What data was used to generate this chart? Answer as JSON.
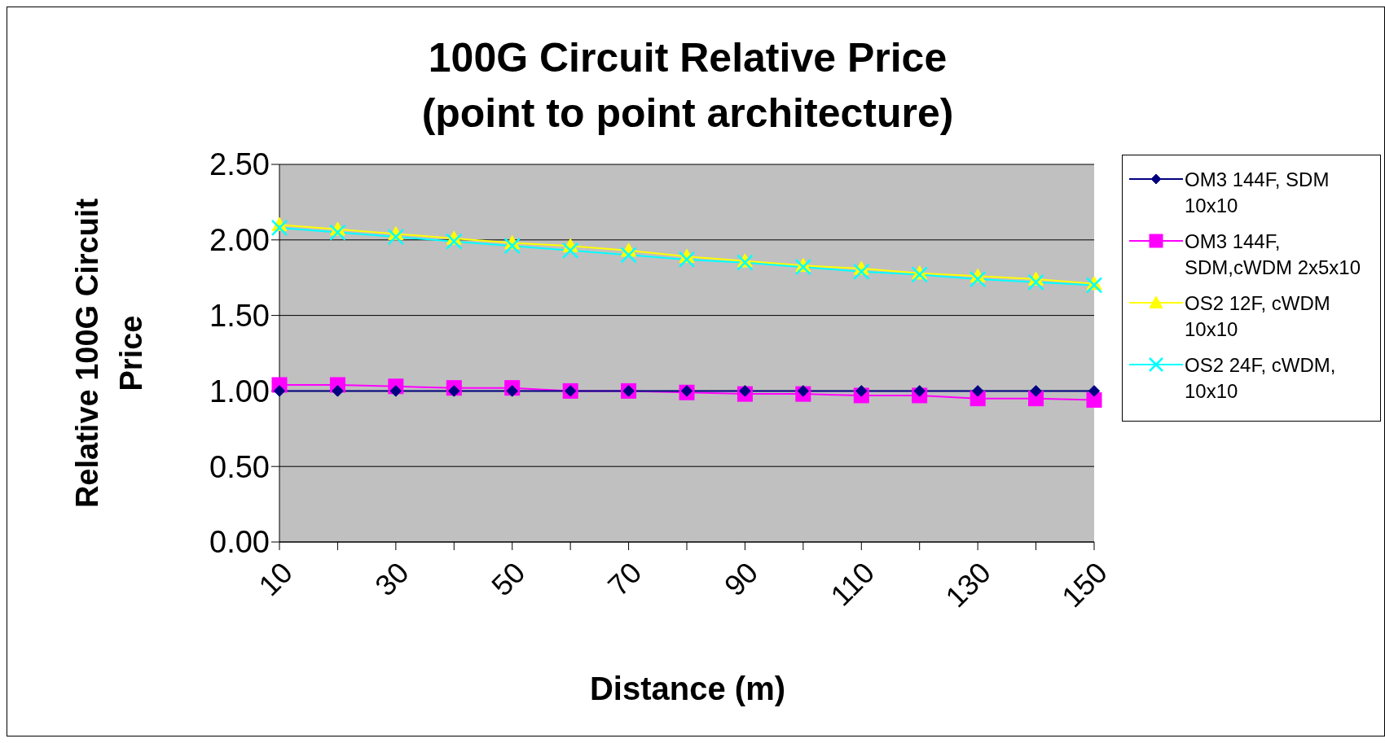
{
  "chart_data": {
    "type": "line",
    "title": "100G Circuit Relative Price\n(point to point architecture)",
    "xlabel": "Distance (m)",
    "ylabel": "Relative 100G Circuit\nPrice",
    "categories": [
      "10",
      null,
      "30",
      null,
      "50",
      null,
      "70",
      null,
      "90",
      null,
      "110",
      null,
      "130",
      null,
      "150"
    ],
    "series": [
      {
        "name": "OM3 144F, SDM 10x10",
        "color": "#000080",
        "marker": "diamond",
        "values": [
          1.0,
          1.0,
          1.0,
          1.0,
          1.0,
          1.0,
          1.0,
          1.0,
          1.0,
          1.0,
          1.0,
          1.0,
          1.0,
          1.0,
          1.0
        ]
      },
      {
        "name": "OM3 144F, SDM,cWDM 2x5x10",
        "color": "#ff00ff",
        "marker": "square",
        "values": [
          1.04,
          1.04,
          1.03,
          1.02,
          1.02,
          1.0,
          1.0,
          0.99,
          0.98,
          0.98,
          0.97,
          0.97,
          0.95,
          0.95,
          0.94
        ]
      },
      {
        "name": "OS2 12F, cWDM 10x10",
        "color": "#ffff00",
        "marker": "triangle",
        "values": [
          2.1,
          2.07,
          2.04,
          2.01,
          1.98,
          1.96,
          1.93,
          1.89,
          1.86,
          1.83,
          1.81,
          1.78,
          1.76,
          1.74,
          1.71
        ]
      },
      {
        "name": "OS2 24F, cWDM, 10x10",
        "color": "#00ffff",
        "marker": "cross",
        "values": [
          2.08,
          2.05,
          2.02,
          1.99,
          1.96,
          1.93,
          1.9,
          1.87,
          1.85,
          1.82,
          1.79,
          1.77,
          1.74,
          1.72,
          1.7
        ]
      }
    ],
    "ylim": [
      0,
      2.5
    ],
    "yticks": [
      {
        "value": 0,
        "label": "0.00"
      },
      {
        "value": 0.5,
        "label": "0.50"
      },
      {
        "value": 1,
        "label": "1.00"
      },
      {
        "value": 1.5,
        "label": "1.50"
      },
      {
        "value": 2,
        "label": "2.00"
      },
      {
        "value": 2.5,
        "label": "2.50"
      }
    ],
    "grid": "y",
    "legend": "right",
    "line_style": "solid"
  }
}
